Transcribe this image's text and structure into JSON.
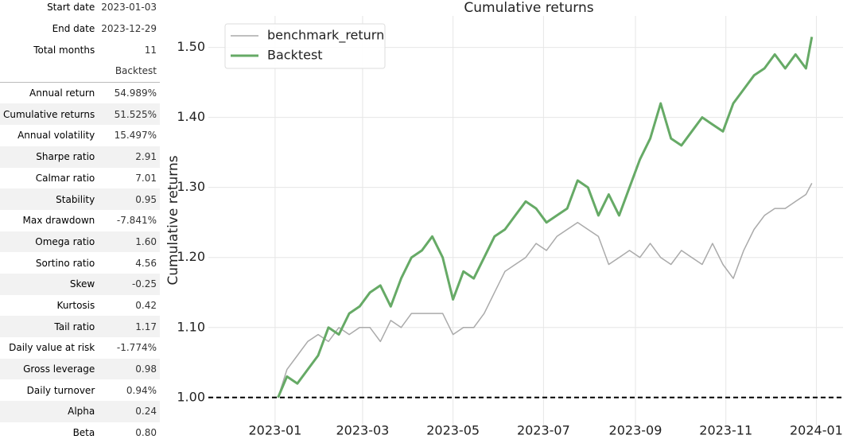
{
  "table": {
    "info": [
      [
        "Start date",
        "2023-01-03"
      ],
      [
        "End date",
        "2023-12-29"
      ],
      [
        "Total months",
        "11"
      ]
    ],
    "columns": [
      "Backtest"
    ],
    "rows": [
      [
        "Annual return",
        "54.989%"
      ],
      [
        "Cumulative returns",
        "51.525%"
      ],
      [
        "Annual volatility",
        "15.497%"
      ],
      [
        "Sharpe ratio",
        "2.91"
      ],
      [
        "Calmar ratio",
        "7.01"
      ],
      [
        "Stability",
        "0.95"
      ],
      [
        "Max drawdown",
        "-7.841%"
      ],
      [
        "Omega ratio",
        "1.60"
      ],
      [
        "Sortino ratio",
        "4.56"
      ],
      [
        "Skew",
        "-0.25"
      ],
      [
        "Kurtosis",
        "0.42"
      ],
      [
        "Tail ratio",
        "1.17"
      ],
      [
        "Daily value at risk",
        "-1.774%"
      ],
      [
        "Gross leverage",
        "0.98"
      ],
      [
        "Daily turnover",
        "0.94%"
      ],
      [
        "Alpha",
        "0.24"
      ],
      [
        "Beta",
        "0.80"
      ]
    ]
  },
  "chart_data": {
    "type": "line",
    "title": "Cumulative returns",
    "y_label": "Cumulative returns",
    "x": [
      "2023-01-03",
      "2023-01-09",
      "2023-01-16",
      "2023-01-23",
      "2023-01-30",
      "2023-02-06",
      "2023-02-13",
      "2023-02-20",
      "2023-02-27",
      "2023-03-06",
      "2023-03-13",
      "2023-03-20",
      "2023-03-27",
      "2023-04-03",
      "2023-04-10",
      "2023-04-17",
      "2023-04-24",
      "2023-05-01",
      "2023-05-08",
      "2023-05-15",
      "2023-05-22",
      "2023-05-29",
      "2023-06-05",
      "2023-06-12",
      "2023-06-19",
      "2023-06-26",
      "2023-07-03",
      "2023-07-10",
      "2023-07-17",
      "2023-07-24",
      "2023-07-31",
      "2023-08-07",
      "2023-08-14",
      "2023-08-21",
      "2023-08-28",
      "2023-09-04",
      "2023-09-11",
      "2023-09-18",
      "2023-09-25",
      "2023-10-02",
      "2023-10-09",
      "2023-10-16",
      "2023-10-23",
      "2023-10-30",
      "2023-11-06",
      "2023-11-13",
      "2023-11-20",
      "2023-11-27",
      "2023-12-04",
      "2023-12-11",
      "2023-12-18",
      "2023-12-25",
      "2023-12-29"
    ],
    "series": [
      {
        "name": "benchmark_return",
        "color": "#aaaaaa",
        "width": 1.5,
        "values": [
          1.0,
          1.04,
          1.06,
          1.08,
          1.09,
          1.08,
          1.1,
          1.09,
          1.1,
          1.1,
          1.08,
          1.11,
          1.1,
          1.12,
          1.12,
          1.12,
          1.12,
          1.09,
          1.1,
          1.1,
          1.12,
          1.15,
          1.18,
          1.19,
          1.2,
          1.22,
          1.21,
          1.23,
          1.24,
          1.25,
          1.24,
          1.23,
          1.19,
          1.2,
          1.21,
          1.2,
          1.22,
          1.2,
          1.19,
          1.21,
          1.2,
          1.19,
          1.22,
          1.19,
          1.17,
          1.21,
          1.24,
          1.26,
          1.27,
          1.27,
          1.28,
          1.29,
          1.306
        ]
      },
      {
        "name": "Backtest",
        "color": "#66aa66",
        "width": 3,
        "values": [
          1.0,
          1.03,
          1.02,
          1.04,
          1.06,
          1.1,
          1.09,
          1.12,
          1.13,
          1.15,
          1.16,
          1.13,
          1.17,
          1.2,
          1.21,
          1.23,
          1.2,
          1.14,
          1.18,
          1.17,
          1.2,
          1.23,
          1.24,
          1.26,
          1.28,
          1.27,
          1.25,
          1.26,
          1.27,
          1.31,
          1.3,
          1.26,
          1.29,
          1.26,
          1.3,
          1.34,
          1.37,
          1.42,
          1.37,
          1.36,
          1.38,
          1.4,
          1.39,
          1.38,
          1.42,
          1.44,
          1.46,
          1.47,
          1.49,
          1.47,
          1.49,
          1.47,
          1.515
        ]
      }
    ],
    "hline": 1.0,
    "xlim": [
      "2022-11-17",
      "2024-01-19"
    ],
    "xticks": [
      {
        "value": "2023-01-01",
        "label": "2023-01"
      },
      {
        "value": "2023-03-01",
        "label": "2023-03"
      },
      {
        "value": "2023-05-01",
        "label": "2023-05"
      },
      {
        "value": "2023-07-01",
        "label": "2023-07"
      },
      {
        "value": "2023-09-01",
        "label": "2023-09"
      },
      {
        "value": "2023-11-01",
        "label": "2023-11"
      },
      {
        "value": "2024-01-01",
        "label": "2024-01"
      }
    ],
    "ylim": [
      0.96,
      1.545
    ],
    "yticks": [
      {
        "value": 1.0,
        "label": "1.00"
      },
      {
        "value": 1.1,
        "label": "1.10"
      },
      {
        "value": 1.2,
        "label": "1.20"
      },
      {
        "value": 1.3,
        "label": "1.30"
      },
      {
        "value": 1.4,
        "label": "1.40"
      },
      {
        "value": 1.5,
        "label": "1.50"
      }
    ],
    "grid": true,
    "legend": "upper-left"
  }
}
